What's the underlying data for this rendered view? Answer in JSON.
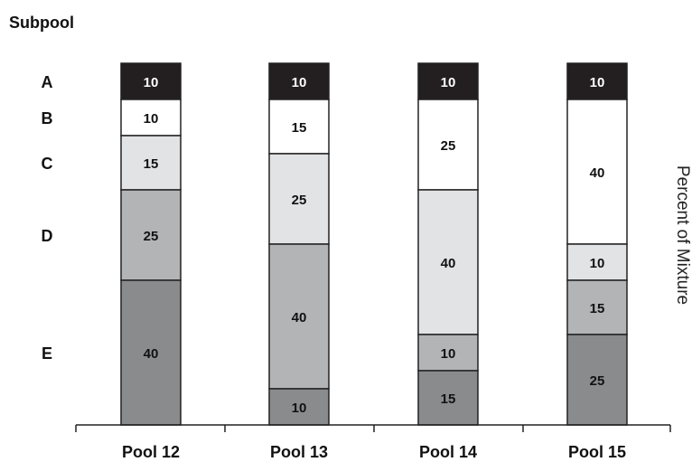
{
  "chart_data": {
    "type": "bar",
    "stacked": true,
    "title": "Subpool",
    "ylabel": "Percent of Mixture",
    "ylim": [
      0,
      100
    ],
    "categories": [
      "Pool 12",
      "Pool 13",
      "Pool 14",
      "Pool 15"
    ],
    "row_labels": [
      "A",
      "B",
      "C",
      "D",
      "E"
    ],
    "series_colors": [
      "#231f20",
      "#ffffff",
      "#e2e3e5",
      "#b3b4b6",
      "#8a8b8d"
    ],
    "columns": [
      {
        "category": "Pool 12",
        "segments": [
          10,
          10,
          15,
          25,
          40
        ]
      },
      {
        "category": "Pool 13",
        "segments": [
          10,
          15,
          25,
          40,
          10
        ]
      },
      {
        "category": "Pool 14",
        "segments": [
          10,
          25,
          40,
          10,
          15
        ]
      },
      {
        "category": "Pool 15",
        "segments": [
          10,
          40,
          10,
          15,
          25
        ]
      }
    ]
  }
}
